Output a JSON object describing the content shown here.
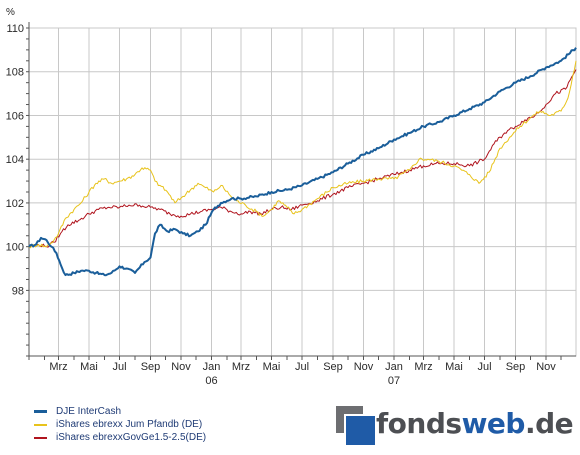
{
  "chart_data": {
    "type": "line",
    "unit_label": "%",
    "ylim": [
      95,
      110
    ],
    "y_ticks": [
      98,
      100,
      102,
      104,
      106,
      108,
      110
    ],
    "x_range": [
      "2005-01-01",
      "2007-12-31"
    ],
    "month_labels": [
      {
        "date": "2005-03-01",
        "label": "Mrz"
      },
      {
        "date": "2005-05-01",
        "label": "Mai"
      },
      {
        "date": "2005-07-01",
        "label": "Jul"
      },
      {
        "date": "2005-09-01",
        "label": "Sep"
      },
      {
        "date": "2005-11-01",
        "label": "Nov"
      },
      {
        "date": "2006-01-01",
        "label": "Jan"
      },
      {
        "date": "2006-03-01",
        "label": "Mrz"
      },
      {
        "date": "2006-05-01",
        "label": "Mai"
      },
      {
        "date": "2006-07-01",
        "label": "Jul"
      },
      {
        "date": "2006-09-01",
        "label": "Sep"
      },
      {
        "date": "2006-11-01",
        "label": "Nov"
      },
      {
        "date": "2007-01-01",
        "label": "Jan"
      },
      {
        "date": "2007-03-01",
        "label": "Mrz"
      },
      {
        "date": "2007-05-01",
        "label": "Mai"
      },
      {
        "date": "2007-07-01",
        "label": "Jul"
      },
      {
        "date": "2007-09-01",
        "label": "Sep"
      },
      {
        "date": "2007-11-01",
        "label": "Nov"
      }
    ],
    "year_labels": [
      {
        "date": "2006-01-01",
        "label": "06"
      },
      {
        "date": "2007-01-01",
        "label": "07"
      }
    ],
    "grid": true,
    "legend_position": "bottom-left",
    "series": [
      {
        "name": "DJE InterCash",
        "color": "#1a5e9a",
        "points": [
          [
            "2005-01-01",
            100.0
          ],
          [
            "2005-01-15",
            100.1
          ],
          [
            "2005-01-25",
            100.4
          ],
          [
            "2005-02-05",
            100.3
          ],
          [
            "2005-02-15",
            100.0
          ],
          [
            "2005-02-25",
            99.7
          ],
          [
            "2005-03-05",
            99.2
          ],
          [
            "2005-03-15",
            98.7
          ],
          [
            "2005-04-01",
            98.8
          ],
          [
            "2005-04-15",
            98.9
          ],
          [
            "2005-05-01",
            98.9
          ],
          [
            "2005-05-15",
            98.8
          ],
          [
            "2005-06-01",
            98.7
          ],
          [
            "2005-06-15",
            98.8
          ],
          [
            "2005-07-01",
            99.1
          ],
          [
            "2005-07-15",
            99.0
          ],
          [
            "2005-08-01",
            98.8
          ],
          [
            "2005-08-20",
            99.3
          ],
          [
            "2005-09-01",
            99.5
          ],
          [
            "2005-09-10",
            100.6
          ],
          [
            "2005-09-20",
            101.0
          ],
          [
            "2005-10-05",
            100.7
          ],
          [
            "2005-10-20",
            100.8
          ],
          [
            "2005-11-05",
            100.6
          ],
          [
            "2005-11-20",
            100.5
          ],
          [
            "2005-12-05",
            100.7
          ],
          [
            "2005-12-20",
            101.0
          ],
          [
            "2006-01-05",
            101.7
          ],
          [
            "2006-01-20",
            102.0
          ],
          [
            "2006-02-10",
            102.2
          ],
          [
            "2006-03-01",
            102.2
          ],
          [
            "2006-04-01",
            102.3
          ],
          [
            "2006-05-01",
            102.5
          ],
          [
            "2006-06-01",
            102.6
          ],
          [
            "2006-07-01",
            102.8
          ],
          [
            "2006-08-01",
            103.1
          ],
          [
            "2006-09-01",
            103.4
          ],
          [
            "2006-10-01",
            103.8
          ],
          [
            "2006-11-01",
            104.2
          ],
          [
            "2006-12-01",
            104.5
          ],
          [
            "2007-01-01",
            104.9
          ],
          [
            "2007-02-01",
            105.2
          ],
          [
            "2007-03-01",
            105.5
          ],
          [
            "2007-04-01",
            105.7
          ],
          [
            "2007-05-01",
            106.0
          ],
          [
            "2007-06-01",
            106.3
          ],
          [
            "2007-07-01",
            106.6
          ],
          [
            "2007-08-01",
            107.1
          ],
          [
            "2007-09-01",
            107.5
          ],
          [
            "2007-10-01",
            107.8
          ],
          [
            "2007-11-01",
            108.2
          ],
          [
            "2007-12-01",
            108.5
          ],
          [
            "2007-12-31",
            109.1
          ]
        ]
      },
      {
        "name": "iShares ebrexx Jum Pfandb (DE)",
        "color": "#e8c31c",
        "points": [
          [
            "2005-01-01",
            100.0
          ],
          [
            "2005-01-20",
            100.1
          ],
          [
            "2005-02-05",
            100.0
          ],
          [
            "2005-02-20",
            100.3
          ],
          [
            "2005-03-01",
            100.6
          ],
          [
            "2005-03-15",
            101.3
          ],
          [
            "2005-04-01",
            101.7
          ],
          [
            "2005-04-15",
            102.0
          ],
          [
            "2005-05-01",
            102.5
          ],
          [
            "2005-05-15",
            102.9
          ],
          [
            "2005-06-01",
            103.1
          ],
          [
            "2005-06-15",
            102.9
          ],
          [
            "2005-07-01",
            103.0
          ],
          [
            "2005-07-15",
            103.1
          ],
          [
            "2005-08-01",
            103.3
          ],
          [
            "2005-08-15",
            103.6
          ],
          [
            "2005-09-01",
            103.5
          ],
          [
            "2005-09-10",
            103.0
          ],
          [
            "2005-09-20",
            102.8
          ],
          [
            "2005-10-05",
            102.5
          ],
          [
            "2005-10-20",
            102.0
          ],
          [
            "2005-11-05",
            102.3
          ],
          [
            "2005-11-20",
            102.6
          ],
          [
            "2005-12-05",
            102.9
          ],
          [
            "2005-12-20",
            102.7
          ],
          [
            "2006-01-05",
            102.5
          ],
          [
            "2006-01-20",
            102.8
          ],
          [
            "2006-02-05",
            102.4
          ],
          [
            "2006-02-20",
            102.1
          ],
          [
            "2006-03-10",
            101.9
          ],
          [
            "2006-04-01",
            101.6
          ],
          [
            "2006-04-15",
            101.4
          ],
          [
            "2006-05-01",
            101.7
          ],
          [
            "2006-05-15",
            102.1
          ],
          [
            "2006-06-01",
            101.8
          ],
          [
            "2006-06-15",
            101.5
          ],
          [
            "2006-07-01",
            101.7
          ],
          [
            "2006-08-01",
            102.2
          ],
          [
            "2006-09-01",
            102.7
          ],
          [
            "2006-10-01",
            102.9
          ],
          [
            "2006-11-01",
            103.0
          ],
          [
            "2006-12-01",
            103.1
          ],
          [
            "2007-01-01",
            103.1
          ],
          [
            "2007-02-01",
            103.5
          ],
          [
            "2007-02-20",
            104.0
          ],
          [
            "2007-03-10",
            104.0
          ],
          [
            "2007-04-01",
            103.9
          ],
          [
            "2007-05-01",
            103.7
          ],
          [
            "2007-06-01",
            103.3
          ],
          [
            "2007-06-20",
            102.9
          ],
          [
            "2007-07-10",
            103.4
          ],
          [
            "2007-08-01",
            104.5
          ],
          [
            "2007-08-20",
            105.0
          ],
          [
            "2007-09-10",
            105.5
          ],
          [
            "2007-10-01",
            105.9
          ],
          [
            "2007-10-20",
            106.2
          ],
          [
            "2007-11-10",
            106.0
          ],
          [
            "2007-12-01",
            106.2
          ],
          [
            "2007-12-15",
            106.8
          ],
          [
            "2007-12-31",
            108.5
          ]
        ]
      },
      {
        "name": "iShares ebrexxGovGe1.5-2.5(DE)",
        "color": "#b0141e",
        "points": [
          [
            "2005-01-01",
            100.0
          ],
          [
            "2005-01-20",
            100.1
          ],
          [
            "2005-02-05",
            100.0
          ],
          [
            "2005-02-20",
            100.2
          ],
          [
            "2005-03-05",
            100.6
          ],
          [
            "2005-03-20",
            101.0
          ],
          [
            "2005-04-10",
            101.2
          ],
          [
            "2005-05-01",
            101.5
          ],
          [
            "2005-05-20",
            101.7
          ],
          [
            "2005-06-10",
            101.8
          ],
          [
            "2005-07-01",
            101.8
          ],
          [
            "2005-07-20",
            101.9
          ],
          [
            "2005-08-10",
            101.9
          ],
          [
            "2005-09-01",
            101.8
          ],
          [
            "2005-09-20",
            101.7
          ],
          [
            "2005-10-10",
            101.5
          ],
          [
            "2005-11-01",
            101.4
          ],
          [
            "2005-11-20",
            101.5
          ],
          [
            "2005-12-10",
            101.6
          ],
          [
            "2006-01-01",
            101.7
          ],
          [
            "2006-01-20",
            101.8
          ],
          [
            "2006-02-10",
            101.6
          ],
          [
            "2006-03-01",
            101.5
          ],
          [
            "2006-03-20",
            101.6
          ],
          [
            "2006-04-10",
            101.5
          ],
          [
            "2006-05-01",
            101.7
          ],
          [
            "2006-05-20",
            101.8
          ],
          [
            "2006-06-10",
            101.7
          ],
          [
            "2006-07-01",
            101.9
          ],
          [
            "2006-08-01",
            102.1
          ],
          [
            "2006-09-01",
            102.4
          ],
          [
            "2006-10-01",
            102.7
          ],
          [
            "2006-11-01",
            102.9
          ],
          [
            "2006-12-01",
            103.1
          ],
          [
            "2007-01-01",
            103.3
          ],
          [
            "2007-02-01",
            103.5
          ],
          [
            "2007-03-01",
            103.7
          ],
          [
            "2007-04-01",
            103.8
          ],
          [
            "2007-05-01",
            103.8
          ],
          [
            "2007-06-01",
            103.7
          ],
          [
            "2007-07-01",
            104.0
          ],
          [
            "2007-07-20",
            104.7
          ],
          [
            "2007-08-10",
            105.2
          ],
          [
            "2007-09-01",
            105.5
          ],
          [
            "2007-09-20",
            105.8
          ],
          [
            "2007-10-10",
            106.0
          ],
          [
            "2007-11-01",
            106.5
          ],
          [
            "2007-11-20",
            107.0
          ],
          [
            "2007-12-10",
            107.2
          ],
          [
            "2007-12-31",
            108.1
          ]
        ]
      }
    ]
  },
  "brand": {
    "part1": "fonds",
    "part2": "web",
    "part3": ".de"
  }
}
